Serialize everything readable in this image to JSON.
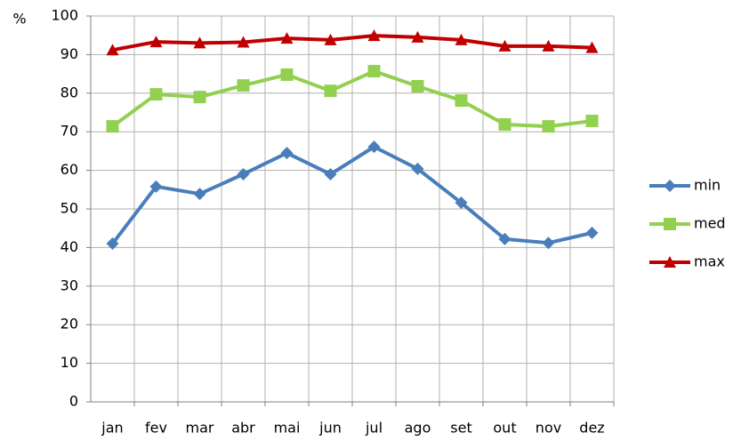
{
  "chart_data": {
    "type": "line",
    "y_label": "%",
    "categories": [
      "jan",
      "fev",
      "mar",
      "abr",
      "mai",
      "jun",
      "jul",
      "ago",
      "set",
      "out",
      "nov",
      "dez"
    ],
    "series": [
      {
        "name": "min",
        "color": "#4a7ebb",
        "marker": "diamond",
        "values": [
          41.0,
          55.8,
          53.9,
          59.0,
          64.5,
          59.0,
          66.1,
          60.4,
          51.6,
          42.2,
          41.2,
          43.8
        ]
      },
      {
        "name": "med",
        "color": "#92d050",
        "marker": "square",
        "values": [
          71.4,
          79.7,
          79.0,
          82.0,
          84.8,
          80.6,
          85.7,
          81.8,
          78.1,
          71.9,
          71.4,
          72.8
        ]
      },
      {
        "name": "max",
        "color": "#c00000",
        "marker": "triangle",
        "values": [
          91.2,
          93.3,
          93.0,
          93.2,
          94.2,
          93.8,
          94.9,
          94.5,
          93.8,
          92.2,
          92.2,
          91.8
        ]
      }
    ],
    "ylim": [
      0,
      100
    ],
    "yticks": [
      0,
      10,
      20,
      30,
      40,
      50,
      60,
      70,
      80,
      90,
      100
    ],
    "grid": true,
    "legend": "right"
  }
}
